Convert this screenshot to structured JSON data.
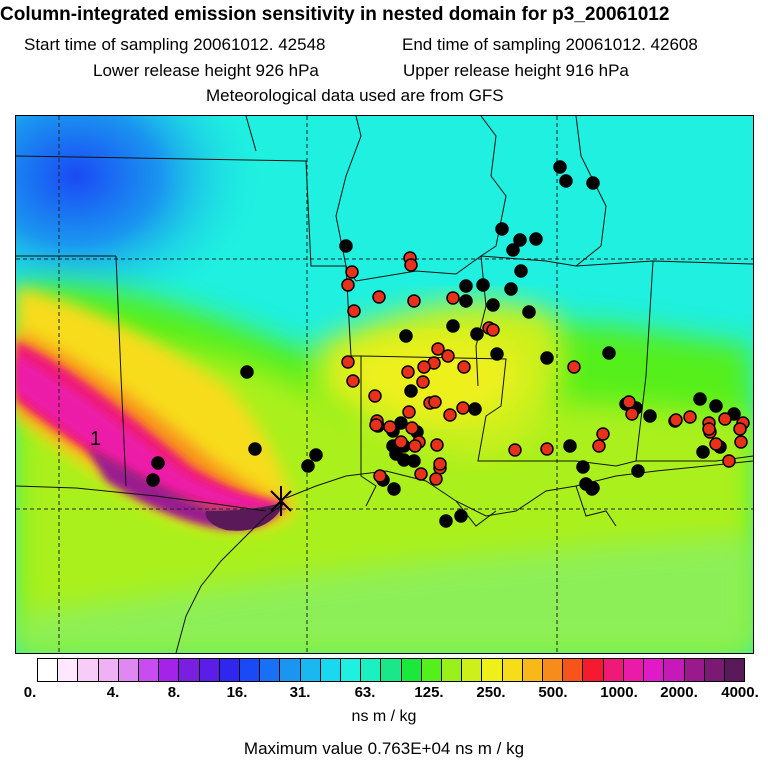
{
  "title": "Column-integrated emission sensitivity in nested domain for p3_20061012",
  "start_label": "Start time of sampling 20061012. 42548",
  "end_label": "End time of sampling 20061012. 42608",
  "lower_label": "Lower release height  926 hPa",
  "upper_label": "Upper release height  916 hPa",
  "met_label": "Meteorological data used are from GFS",
  "map": {
    "plume_label": "1",
    "colors": {
      "background": "#1ff0e0",
      "plume_core": "#5a1a5a",
      "dot_black": "#000000",
      "dot_red": "#e8301a"
    }
  },
  "colorbar": {
    "colors": [
      "#ffffff",
      "#fde8fd",
      "#f7ccf7",
      "#f0b0f5",
      "#e088f2",
      "#c84cef",
      "#a523e8",
      "#7a1fe0",
      "#5a1ee8",
      "#2f26f0",
      "#1a4af5",
      "#1a70f5",
      "#1a96f0",
      "#1ab8f0",
      "#1ad8f0",
      "#1ff0e0",
      "#1af0c0",
      "#1ae888",
      "#1ae83a",
      "#55ef1a",
      "#9af01a",
      "#cdf01a",
      "#eef01a",
      "#f7dc1a",
      "#f7b81a",
      "#f78c1a",
      "#f5541a",
      "#f51a30",
      "#ef1a78",
      "#ec1aa8",
      "#e01ac8",
      "#c51ab8",
      "#9a1a8e",
      "#7a1a72",
      "#5a1a5a"
    ],
    "ticks": [
      "0.",
      "4.",
      "8.",
      "16.",
      "31.",
      "63.",
      "125.",
      "250.",
      "500.",
      "1000.",
      "2000.",
      "4000."
    ]
  },
  "units_label": "ns m / kg",
  "max_label": "Maximum value  0.763E+04 ns m / kg"
}
